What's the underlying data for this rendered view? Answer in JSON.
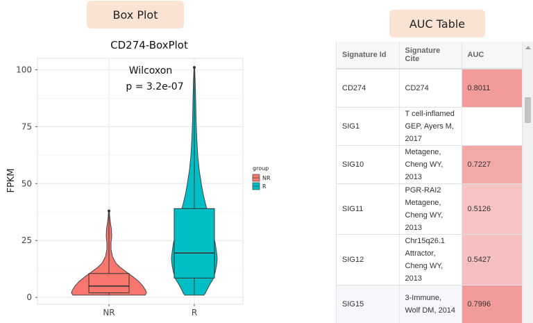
{
  "labels": {
    "box_plot_tag": "Box Plot",
    "auc_table_tag": "AUC Table"
  },
  "chart_data": {
    "type": "box",
    "title": "CD274-BoxPlot",
    "xlabel": "",
    "ylabel": "FPKM",
    "ylim": [
      -3,
      105
    ],
    "yticks": [
      0,
      25,
      50,
      75,
      100
    ],
    "categories": [
      "NR",
      "R"
    ],
    "annotation": [
      "Wilcoxon",
      "p = 3.2e-07"
    ],
    "legend": {
      "title": "group",
      "entries": [
        "NR",
        "R"
      ],
      "position": "right"
    },
    "grid": true,
    "groups": [
      {
        "name": "NR",
        "min": 1,
        "q1": 2,
        "median": 5,
        "q3": 10.5,
        "max": 38,
        "outliers": [
          38
        ],
        "color": "#f8766d"
      },
      {
        "name": "R",
        "min": 1,
        "q1": 8.5,
        "median": 19.5,
        "q3": 39,
        "max": 101,
        "outliers": [
          101
        ],
        "color": "#00bfc4"
      }
    ]
  },
  "table": {
    "headers": [
      "Signature Id",
      "Signature Cite",
      "AUC"
    ],
    "rows": [
      {
        "id": "CD274",
        "cite": "CD274",
        "auc": "0.8011",
        "color": "#f29b9b"
      },
      {
        "id": "SIG1",
        "cite": "T cell-inflamed GEP, Ayers M, 2017",
        "auc": "",
        "color": "#ffffff"
      },
      {
        "id": "SIG10",
        "cite": "Metagene, Cheng WY, 2013",
        "auc": "0.7227",
        "color": "#f4a9a9"
      },
      {
        "id": "SIG11",
        "cite": "PGR-RAI2 Metagene, Cheng WY, 2013",
        "auc": "0.5126",
        "color": "#f7c4c4"
      },
      {
        "id": "SIG12",
        "cite": "Chr15q26.1 Attractor, Cheng WY, 2013",
        "auc": "0.5427",
        "color": "#f6bfbf"
      },
      {
        "id": "SIG15",
        "cite": "3-Immune, Wolf DM, 2014",
        "auc": "0.7996",
        "color": "#f29b9b"
      }
    ]
  }
}
